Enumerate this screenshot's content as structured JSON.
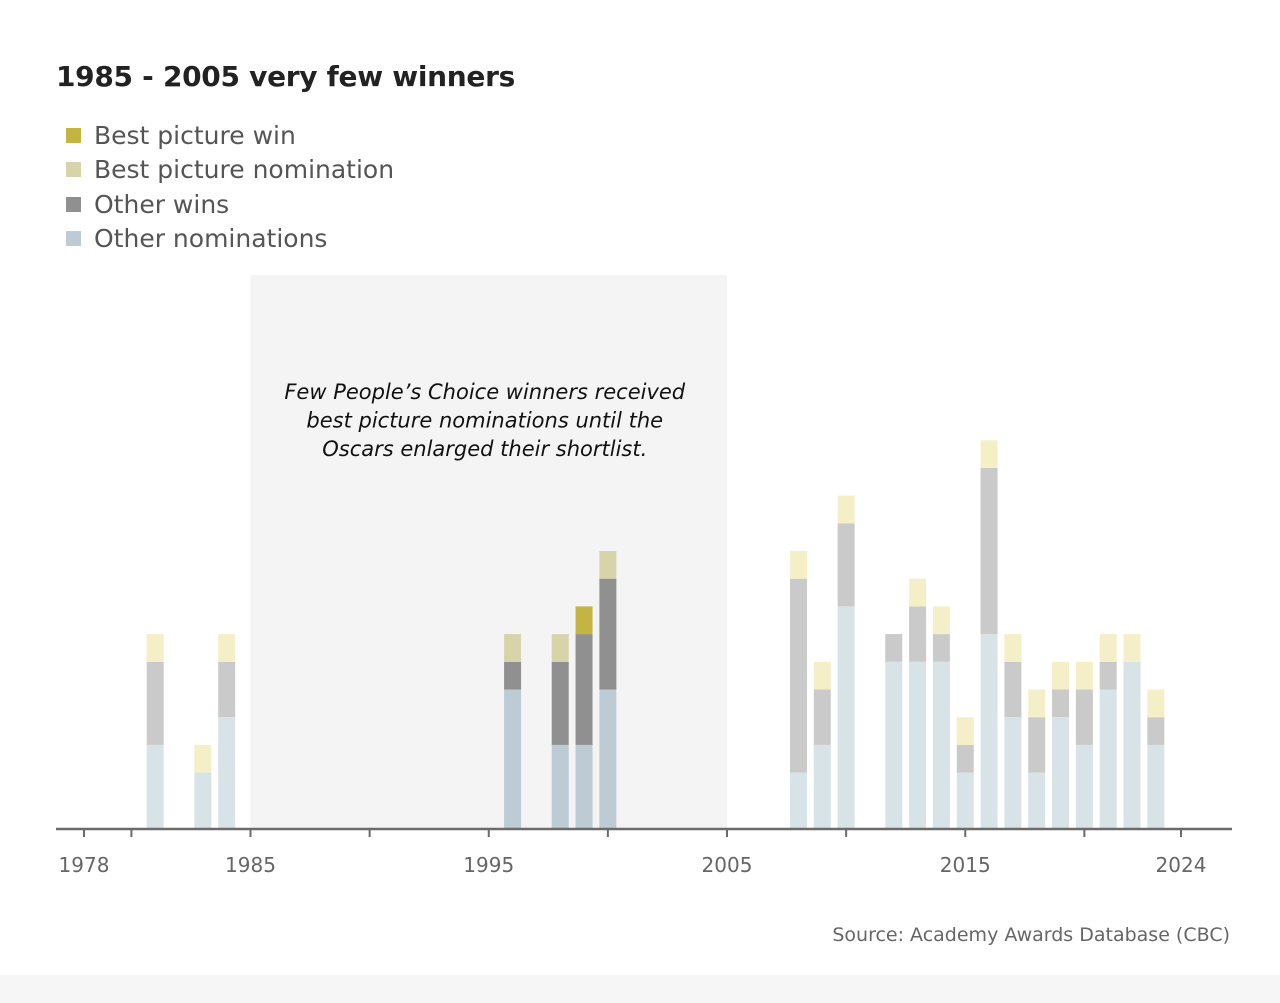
{
  "chart_data": {
    "type": "bar",
    "stacked": true,
    "title": "1985 - 2005 very few winners",
    "source": "Source: Academy Awards Database (CBC)",
    "annotation": {
      "lines": [
        "Few People’s Choice winners received",
        "best picture nominations until the",
        "Oscars enlarged their shortlist."
      ],
      "range": [
        1985,
        2005
      ]
    },
    "xlim": [
      1978,
      2024
    ],
    "x_ticks": [
      1978,
      1985,
      1995,
      2005,
      2015,
      2024
    ],
    "ylim": [
      0,
      14
    ],
    "legend": [
      {
        "name": "Best picture win",
        "color": "#c4b443"
      },
      {
        "name": "Best picture nomination",
        "color": "#d7d3aa"
      },
      {
        "name": "Other wins",
        "color": "#909090"
      },
      {
        "name": "Other nominations",
        "color": "#bccbd4"
      }
    ],
    "categories": [
      1981,
      1983,
      1984,
      1996,
      1998,
      1999,
      2000,
      2008,
      2009,
      2010,
      2012,
      2013,
      2014,
      2015,
      2016,
      2017,
      2018,
      2019,
      2020,
      2021,
      2022,
      2023
    ],
    "series": [
      {
        "name": "Other nominations",
        "values": [
          3,
          2,
          4,
          5,
          3,
          3,
          5,
          2,
          3,
          8,
          6,
          6,
          6,
          2,
          7,
          4,
          2,
          4,
          3,
          5,
          6,
          3
        ]
      },
      {
        "name": "Other wins",
        "values": [
          3,
          0,
          2,
          1,
          3,
          4,
          4,
          7,
          2,
          3,
          1,
          2,
          1,
          1,
          6,
          2,
          2,
          1,
          2,
          1,
          0,
          1
        ]
      },
      {
        "name": "Best picture win",
        "values": [
          0,
          0,
          0,
          0,
          0,
          1,
          0,
          0,
          0,
          0,
          0,
          0,
          0,
          0,
          0,
          0,
          0,
          0,
          0,
          0,
          0,
          0
        ]
      },
      {
        "name": "Best picture nomination",
        "values": [
          1,
          1,
          1,
          1,
          1,
          0,
          1,
          1,
          1,
          1,
          0,
          1,
          1,
          1,
          1,
          1,
          1,
          1,
          1,
          1,
          1,
          1
        ]
      }
    ],
    "bar_colors_outside_highlight": {
      "Other nominations": "#d8e3e8",
      "Other wins": "#cacaca",
      "Best picture win": "#f3ebb6",
      "Best picture nomination": "#f5efc8"
    }
  }
}
